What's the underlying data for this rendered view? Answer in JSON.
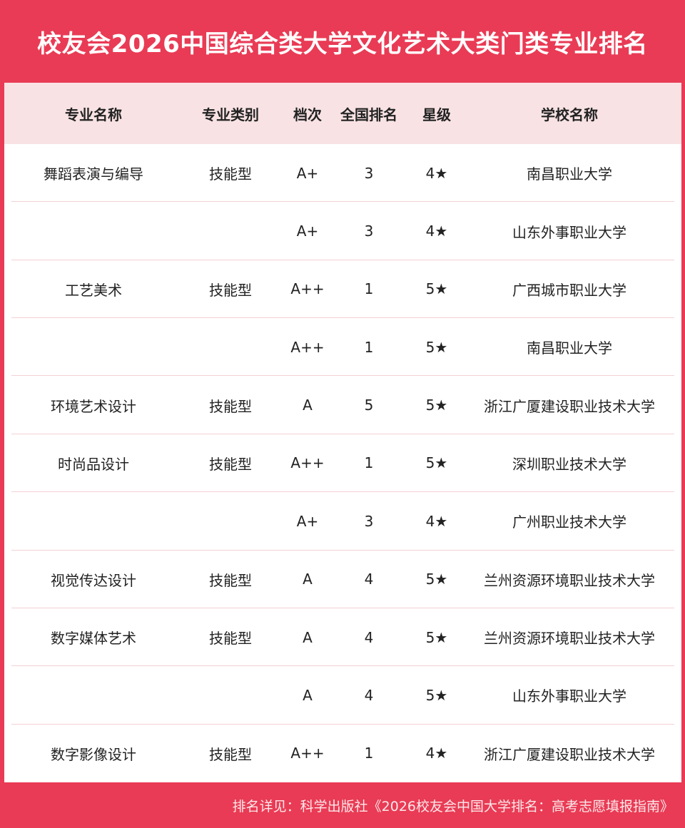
{
  "title": "校友会2026中国综合类大学文化艺术大类门类专业排名",
  "columns": [
    "专业名称",
    "专业类别",
    "档次",
    "全国排名",
    "星级",
    "学校名称"
  ],
  "rows": [
    [
      "舞蹈表演与编导",
      "技能型",
      "A+",
      "3",
      "4★",
      "南昌职业大学"
    ],
    [
      "",
      "",
      "A+",
      "3",
      "4★",
      "山东外事职业大学"
    ],
    [
      "工艺美术",
      "技能型",
      "A++",
      "1",
      "5★",
      "广西城市职业大学"
    ],
    [
      "",
      "",
      "A++",
      "1",
      "5★",
      "南昌职业大学"
    ],
    [
      "环境艺术设计",
      "技能型",
      "A",
      "5",
      "5★",
      "浙江广厦建设职业技术大学"
    ],
    [
      "时尚品设计",
      "技能型",
      "A++",
      "1",
      "5★",
      "深圳职业技术大学"
    ],
    [
      "",
      "",
      "A+",
      "3",
      "4★",
      "广州职业技术大学"
    ],
    [
      "视觉传达设计",
      "技能型",
      "A",
      "4",
      "5★",
      "兰州资源环境职业技术大学"
    ],
    [
      "数字媒体艺术",
      "技能型",
      "A",
      "4",
      "5★",
      "兰州资源环境职业技术大学"
    ],
    [
      "",
      "",
      "A",
      "4",
      "5★",
      "山东外事职业大学"
    ],
    [
      "数字影像设计",
      "技能型",
      "A++",
      "1",
      "4★",
      "浙江广厦建设职业技术大学"
    ]
  ],
  "footer": "排名详见：科学出版社《2026校友会中国大学排名：高考志愿填报指南》",
  "colors": {
    "brand": "#e93b55",
    "header_bg": "#f8e2e4",
    "header_text": "#5a0f0f"
  }
}
